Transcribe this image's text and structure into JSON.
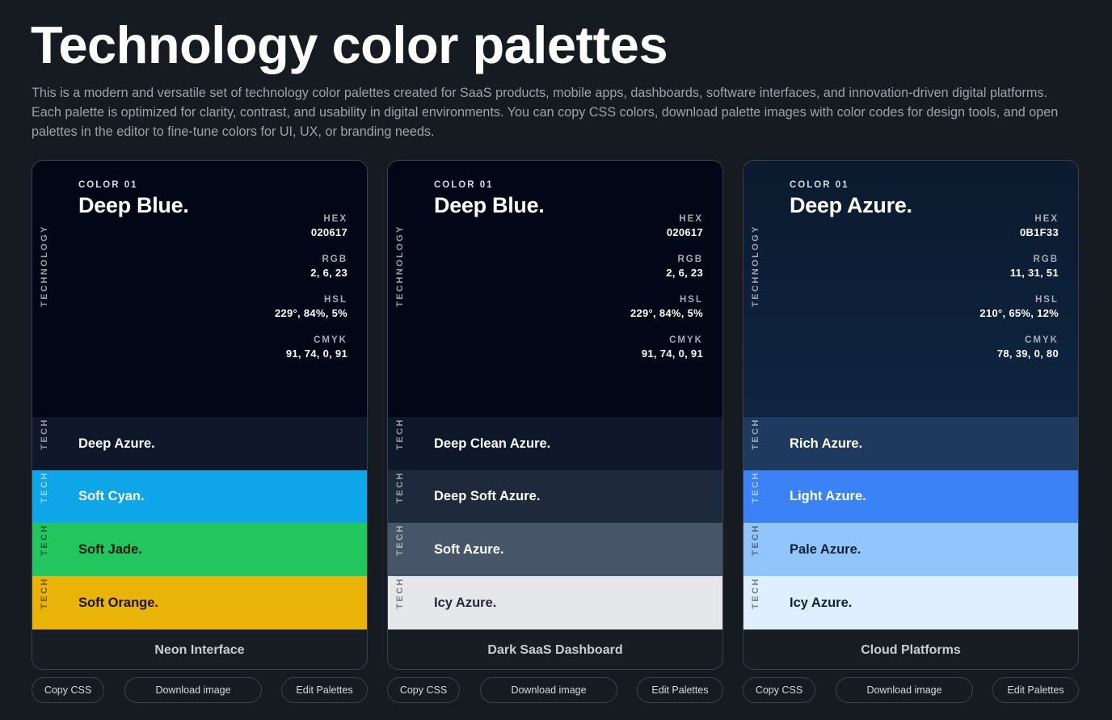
{
  "page": {
    "title": "Technology color palettes",
    "description": "This is a modern and versatile set of technology color palettes created for SaaS products, mobile apps, dashboards, software interfaces, and innovation-driven digital platforms. Each palette is optimized for clarity, contrast, and usability in digital environments. You can copy CSS colors, download palette images with color codes for design tools, and open palettes in the editor to fine-tune colors for UI, UX, or branding needs."
  },
  "labels": {
    "hex": "HEX",
    "rgb": "RGB",
    "hsl": "HSL",
    "cmyk": "CMYK",
    "vertical_long": "TECHNOLOGY",
    "vertical_short": "TECH",
    "copy_css": "Copy CSS",
    "download_image": "Download image",
    "edit_palettes": "Edit Palettes"
  },
  "palettes": [
    {
      "name": "Neon Interface",
      "primary": {
        "number": "COLOR 01",
        "name": "Deep Blue.",
        "hex": "020617",
        "rgb": "2, 6, 23",
        "hsl": "229°, 84%, 5%",
        "cmyk": "91, 74, 0, 91",
        "color": "#020617"
      },
      "swatches": [
        {
          "name": "Deep Azure.",
          "color": "#0f172a",
          "text": "#ffffff"
        },
        {
          "name": "Soft Cyan.",
          "color": "#0ea5e9",
          "text": "#ffffff"
        },
        {
          "name": "Soft Jade.",
          "color": "#22c55e",
          "text": "#0b1a10"
        },
        {
          "name": "Soft Orange.",
          "color": "#eab308",
          "text": "#1a1404"
        }
      ]
    },
    {
      "name": "Dark SaaS Dashboard",
      "primary": {
        "number": "COLOR 01",
        "name": "Deep Blue.",
        "hex": "020617",
        "rgb": "2, 6, 23",
        "hsl": "229°, 84%, 5%",
        "cmyk": "91, 74, 0, 91",
        "color": "#020617"
      },
      "swatches": [
        {
          "name": "Deep Clean Azure.",
          "color": "#0f172a",
          "text": "#ffffff"
        },
        {
          "name": "Deep Soft Azure.",
          "color": "#1e293b",
          "text": "#ffffff"
        },
        {
          "name": "Soft Azure.",
          "color": "#475569",
          "text": "#ffffff"
        },
        {
          "name": "Icy Azure.",
          "color": "#e5e7eb",
          "text": "#1f2937"
        }
      ]
    },
    {
      "name": "Cloud Platforms",
      "primary": {
        "number": "COLOR 01",
        "name": "Deep Azure.",
        "hex": "0B1F33",
        "rgb": "11, 31, 51",
        "hsl": "210°, 65%, 12%",
        "cmyk": "78, 39, 0, 80",
        "color": "#0b1f33"
      },
      "swatches": [
        {
          "name": "Rich Azure.",
          "color": "#1e3a5f",
          "text": "#ffffff"
        },
        {
          "name": "Light Azure.",
          "color": "#3b82f6",
          "text": "#ffffff"
        },
        {
          "name": "Pale Azure.",
          "color": "#93c5fd",
          "text": "#0f2236"
        },
        {
          "name": "Icy Azure.",
          "color": "#e0efff",
          "text": "#0f2236"
        }
      ]
    }
  ]
}
